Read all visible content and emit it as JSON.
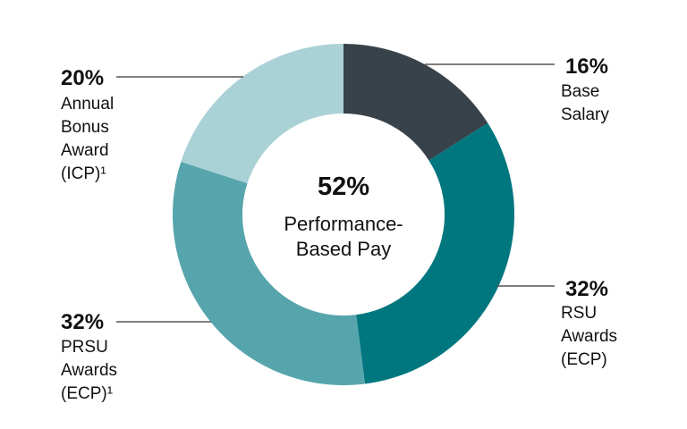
{
  "chart_data": {
    "type": "donut",
    "categories": [
      "Base Salary",
      "RSU Awards (ECP)",
      "PRSU Awards (ECP)¹",
      "Annual Bonus Award (ICP)¹"
    ],
    "values": [
      16,
      32,
      32,
      20
    ],
    "value_labels": [
      "16%",
      "32%",
      "32%",
      "20%"
    ],
    "colors": [
      "#37424a",
      "#00777f",
      "#57a5ac",
      "#a9d1d6"
    ],
    "center_value": "52%",
    "center_label": "Performance-Based Pay"
  }
}
